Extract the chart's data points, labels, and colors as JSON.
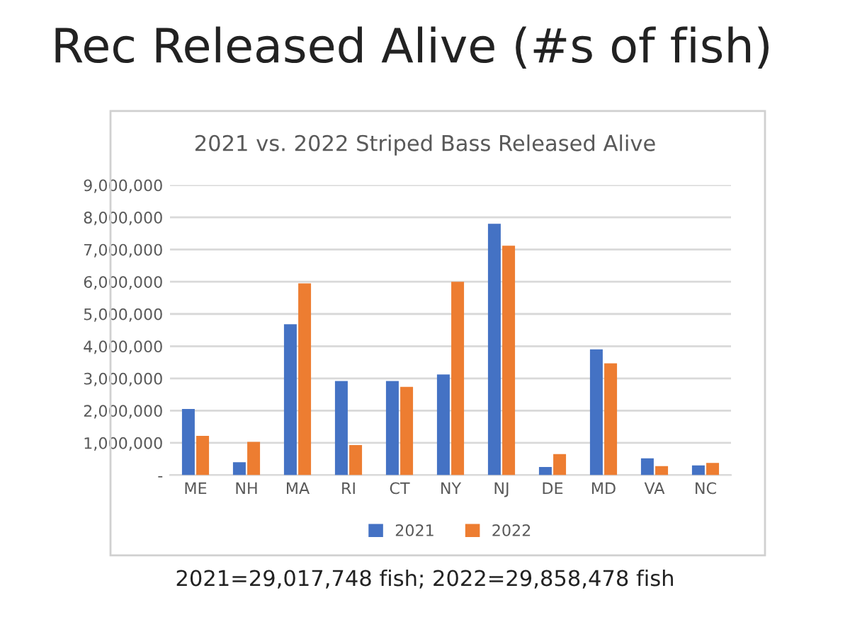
{
  "chart_data": {
    "type": "bar",
    "title": "2021 vs. 2022 Striped Bass Released Alive",
    "subtitle": "Rec Released Alive (#s of fish)",
    "categories": [
      "ME",
      "NH",
      "MA",
      "RI",
      "CT",
      "NY",
      "NJ",
      "DE",
      "MD",
      "VA",
      "NC"
    ],
    "series": [
      {
        "name": "2021",
        "color": "#4472c4",
        "values": [
          2050000,
          400000,
          4680000,
          2920000,
          2920000,
          3120000,
          7800000,
          250000,
          3900000,
          520000,
          300000
        ]
      },
      {
        "name": "2022",
        "color": "#ed7d31",
        "values": [
          1220000,
          1030000,
          5950000,
          930000,
          2740000,
          6000000,
          7120000,
          650000,
          3470000,
          280000,
          380000
        ]
      }
    ],
    "ylim": [
      0,
      9000000
    ],
    "yticks": [
      {
        "value": 0,
        "label": "-"
      },
      {
        "value": 1000000,
        "label": "1,000,000"
      },
      {
        "value": 2000000,
        "label": "2,000,000"
      },
      {
        "value": 3000000,
        "label": "3,000,000"
      },
      {
        "value": 4000000,
        "label": "4,000,000"
      },
      {
        "value": 5000000,
        "label": "5,000,000"
      },
      {
        "value": 6000000,
        "label": "6,000,000"
      },
      {
        "value": 7000000,
        "label": "7,000,000"
      },
      {
        "value": 8000000,
        "label": "8,000,000"
      },
      {
        "value": 9000000,
        "label": "9,000,000"
      }
    ],
    "grid": "y",
    "legend": "bottom",
    "annotations": [
      "2021=29,017,748 fish; 2022=29,858,478 fish"
    ]
  }
}
